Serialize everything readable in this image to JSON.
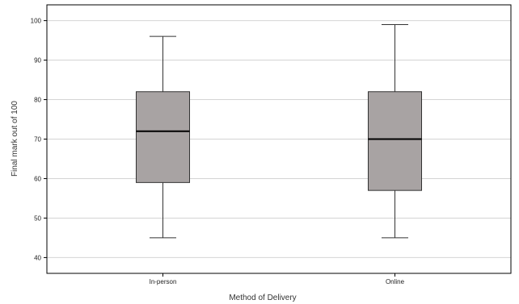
{
  "chart_data": {
    "type": "box",
    "title": "",
    "xlabel": "Method of Delivery",
    "ylabel": "Final mark out of 100",
    "ylim": [
      36,
      104
    ],
    "yticks": [
      40,
      50,
      60,
      70,
      80,
      90,
      100
    ],
    "grid": true,
    "categories": [
      "In-person",
      "Online"
    ],
    "boxes": [
      {
        "category": "In-person",
        "min": 45,
        "q1": 59,
        "median": 72,
        "q3": 82,
        "max": 96
      },
      {
        "category": "Online",
        "min": 45,
        "q1": 57,
        "median": 70,
        "q3": 82,
        "max": 99
      }
    ],
    "colors": {
      "box_fill": "#a8a3a3",
      "box_stroke": "#333333",
      "median": "#000000",
      "grid": "#d4d4d4",
      "frame": "#000000"
    }
  }
}
